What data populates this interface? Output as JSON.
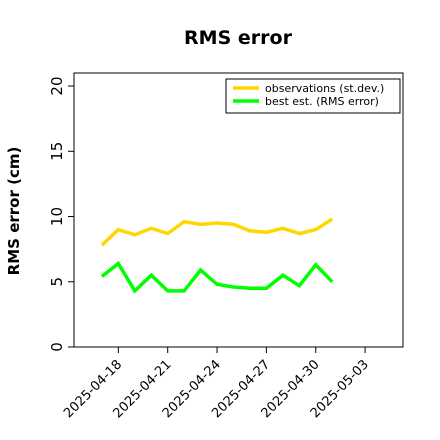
{
  "chart_data": {
    "type": "line",
    "title": "RMS error",
    "xlabel": "",
    "ylabel": "RMS error (cm)",
    "ylim": [
      0,
      21
    ],
    "yticks": [
      0,
      5,
      10,
      15,
      20
    ],
    "xlim": [
      "2025-04-15",
      "2025-05-05"
    ],
    "xticks": [
      "2025-04-18",
      "2025-04-21",
      "2025-04-24",
      "2025-04-27",
      "2025-04-30",
      "2025-05-03"
    ],
    "highlighted_tick": "2025-04-24",
    "highlight_color": "#228b22",
    "grid": false,
    "legend_position": "top-right",
    "x": [
      "2025-04-17",
      "2025-04-18",
      "2025-04-19",
      "2025-04-20",
      "2025-04-21",
      "2025-04-22",
      "2025-04-23",
      "2025-04-24",
      "2025-04-25",
      "2025-04-26",
      "2025-04-27",
      "2025-04-28",
      "2025-04-29",
      "2025-04-30",
      "2025-05-01"
    ],
    "series": [
      {
        "name": "observations (st.dev.)",
        "color": "#ffd700",
        "values": [
          7.8,
          9.0,
          8.6,
          9.1,
          8.7,
          9.6,
          9.4,
          9.5,
          9.4,
          8.9,
          8.8,
          9.1,
          8.7,
          9.0,
          9.8
        ]
      },
      {
        "name": "best est. (RMS error)",
        "color": "#00ff00",
        "values": [
          5.4,
          6.4,
          4.3,
          5.5,
          4.3,
          4.3,
          5.9,
          4.8,
          4.6,
          4.5,
          4.5,
          5.5,
          4.7,
          6.3,
          5.0
        ]
      }
    ]
  }
}
